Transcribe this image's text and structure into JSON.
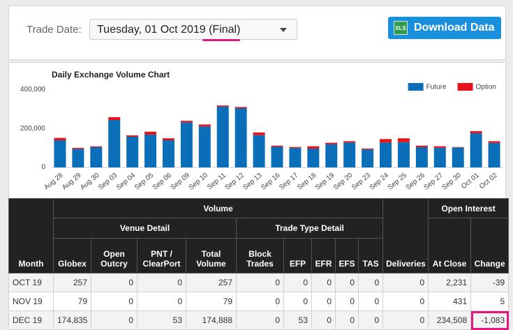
{
  "header": {
    "trade_date_label": "Trade Date:",
    "trade_date_value": "Tuesday, 01 Oct 2019 (Final)",
    "xls_icon": "XLS",
    "download_button": "Download Data"
  },
  "chart_data": {
    "type": "stacked-bar",
    "title": "Daily Exchange Volume Chart",
    "categories": [
      "Aug 28",
      "Aug 29",
      "Aug 30",
      "Sep 03",
      "Sep 04",
      "Sep 05",
      "Sep 06",
      "Sep 09",
      "Sep 10",
      "Sep 11",
      "Sep 12",
      "Sep 13",
      "Sep 16",
      "Sep 17",
      "Sep 18",
      "Sep 19",
      "Sep 20",
      "Sep 23",
      "Sep 24",
      "Sep 25",
      "Sep 26",
      "Sep 27",
      "Sep 30",
      "Oct 01",
      "Oct 02"
    ],
    "series": [
      {
        "name": "Future",
        "color": "#0a6eb8",
        "values": [
          140000,
          96000,
          105000,
          244000,
          158000,
          169000,
          140000,
          232000,
          211000,
          313000,
          305000,
          166000,
          106000,
          100000,
          97000,
          120000,
          128000,
          92000,
          128000,
          130000,
          104000,
          101000,
          103000,
          176000,
          126000
        ]
      },
      {
        "name": "Option",
        "color": "#e8141c",
        "values": [
          12000,
          5000,
          4000,
          15000,
          7000,
          15000,
          10000,
          8000,
          10000,
          6000,
          6000,
          14000,
          6000,
          5000,
          12000,
          7000,
          7000,
          5000,
          18000,
          20000,
          8000,
          8000,
          2000,
          11000,
          9000
        ]
      }
    ],
    "ylim": [
      0,
      420000
    ],
    "yticks": [
      0,
      {
        "value": 200000,
        "label": "200,000"
      },
      {
        "value": 400000,
        "label": "400,000"
      }
    ],
    "grid": false,
    "legend": "top-right"
  },
  "table": {
    "month_header": "Month",
    "volume_header": "Volume",
    "open_interest_header": "Open Interest",
    "venue_detail_header": "Venue Detail",
    "trade_type_detail_header": "Trade Type Detail",
    "columns": [
      "Globex",
      "Open Outcry",
      "PNT / ClearPort",
      "Total Volume",
      "Block Trades",
      "EFP",
      "EFR",
      "EFS",
      "TAS",
      "Deliveries",
      "At Close",
      "Change"
    ],
    "rows": [
      [
        "OCT 19",
        "257",
        "0",
        "0",
        "257",
        "0",
        "0",
        "0",
        "0",
        "0",
        "0",
        "2,231",
        "-39"
      ],
      [
        "NOV 19",
        "79",
        "0",
        "0",
        "79",
        "0",
        "0",
        "0",
        "0",
        "0",
        "0",
        "431",
        "5"
      ],
      [
        "DEC 19",
        "174,835",
        "0",
        "53",
        "174,888",
        "0",
        "53",
        "0",
        "0",
        "0",
        "0",
        "234,508",
        "-1,083"
      ]
    ]
  }
}
